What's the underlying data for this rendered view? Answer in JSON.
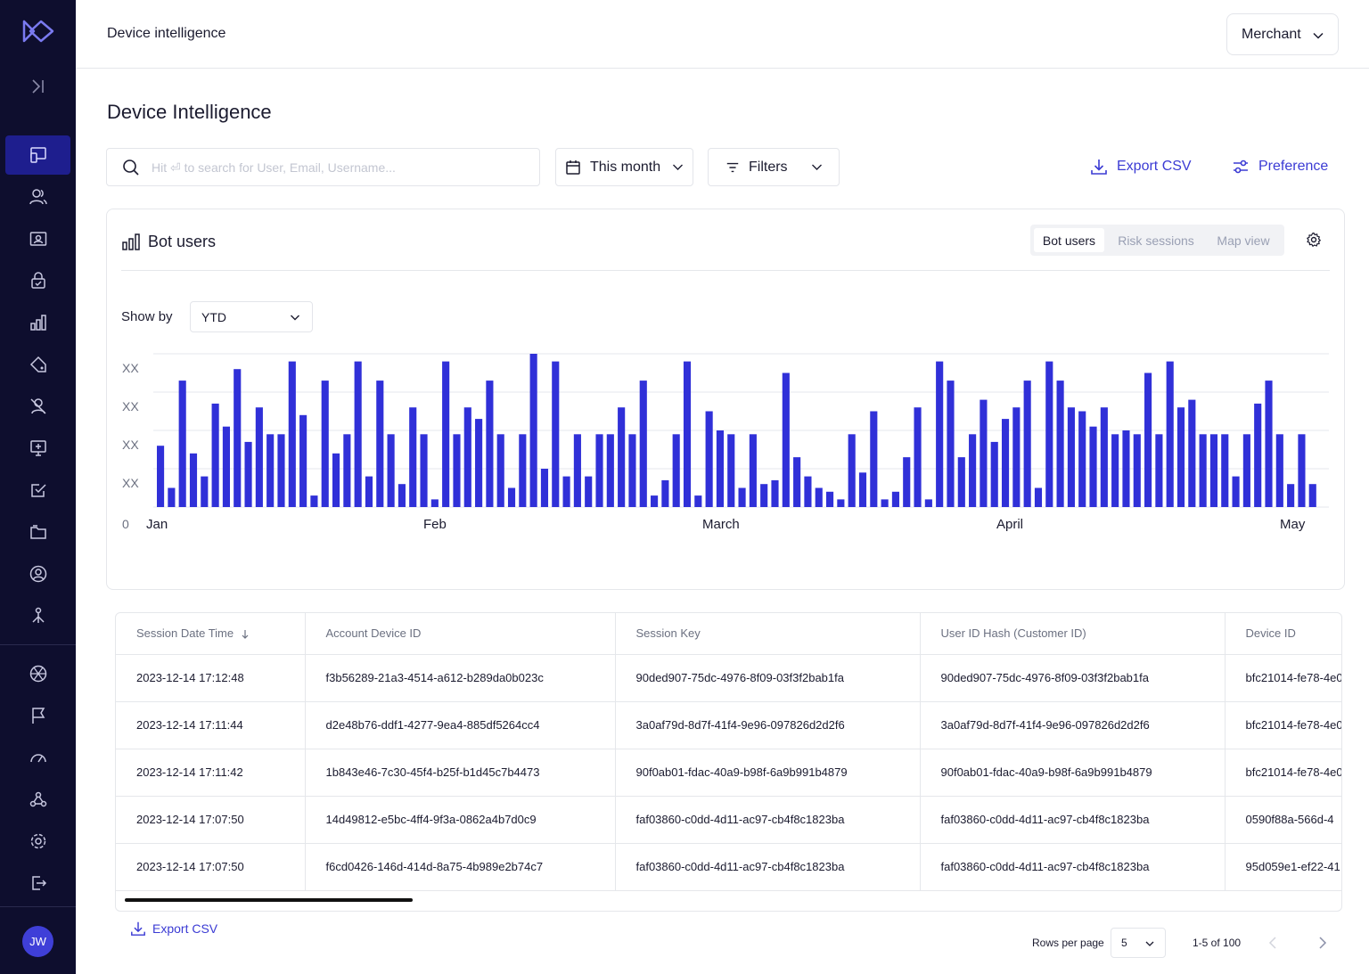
{
  "header": {
    "breadcrumb": "Device intelligence",
    "merchant_label": "Merchant"
  },
  "page": {
    "title": "Device Intelligence"
  },
  "controls": {
    "search_placeholder": "Hit ⏎ to search for User, Email, Username...",
    "date_range": "This month",
    "filters_label": "Filters",
    "export_label": "Export CSV",
    "preference_label": "Preference"
  },
  "chart_card": {
    "title": "Bot users",
    "tabs": [
      {
        "label": "Bot users",
        "active": true
      },
      {
        "label": "Risk sessions",
        "active": false
      },
      {
        "label": "Map view",
        "active": false
      }
    ],
    "show_by_label": "Show by",
    "show_by_value": "YTD"
  },
  "chart_data": {
    "type": "bar",
    "title": "",
    "xlabel": "",
    "ylabel": "",
    "ytick_labels": [
      "XX",
      "XX",
      "XX",
      "XX"
    ],
    "y_zero_label": "0",
    "x_month_labels": [
      "Jan",
      "Feb",
      "March",
      "April",
      "May"
    ],
    "ylim": [
      0,
      40
    ],
    "color": "#3030d8",
    "values": [
      16,
      5,
      33,
      14,
      8,
      27,
      21,
      36,
      17,
      26,
      19,
      19,
      38,
      24,
      3,
      33,
      14,
      19,
      38,
      8,
      33,
      19,
      6,
      26,
      19,
      2,
      38,
      19,
      26,
      23,
      33,
      19,
      5,
      19,
      40,
      10,
      38,
      8,
      19,
      8,
      19,
      19,
      26,
      19,
      33,
      3,
      7,
      19,
      38,
      3,
      25,
      20,
      19,
      5,
      19,
      6,
      7,
      35,
      13,
      8,
      5,
      4,
      2,
      19,
      9,
      25,
      2,
      4,
      13,
      26,
      2,
      38,
      33,
      13,
      19,
      28,
      17,
      23,
      26,
      33,
      5,
      38,
      33,
      26,
      25,
      21,
      26,
      19,
      20,
      19,
      35,
      19,
      38,
      26,
      28,
      19,
      19,
      19,
      8,
      19,
      27,
      33,
      19,
      6,
      19,
      6
    ]
  },
  "table": {
    "columns": [
      "Session Date Time",
      "Account Device ID",
      "Session Key",
      "User ID Hash (Customer ID)",
      "Device ID"
    ],
    "rows": [
      [
        "2023-12-14 17:12:48",
        "f3b56289-21a3-4514-a612-b289da0b023c",
        "90ded907-75dc-4976-8f09-03f3f2bab1fa",
        "90ded907-75dc-4976-8f09-03f3f2bab1fa",
        "bfc21014-fe78-4e0"
      ],
      [
        "2023-12-14 17:11:44",
        "d2e48b76-ddf1-4277-9ea4-885df5264cc4",
        "3a0af79d-8d7f-41f4-9e96-097826d2d2f6",
        "3a0af79d-8d7f-41f4-9e96-097826d2d2f6",
        "bfc21014-fe78-4e0"
      ],
      [
        "2023-12-14 17:11:42",
        "1b843e46-7c30-45f4-b25f-b1d45c7b4473",
        "90f0ab01-fdac-40a9-b98f-6a9b991b4879",
        "90f0ab01-fdac-40a9-b98f-6a9b991b4879",
        "bfc21014-fe78-4e0"
      ],
      [
        "2023-12-14 17:07:50",
        "14d49812-e5bc-4ff4-9f3a-0862a4b7d0c9",
        "faf03860-c0dd-4d11-ac97-cb4f8c1823ba",
        "faf03860-c0dd-4d11-ac97-cb4f8c1823ba",
        "0590f88a-566d-4"
      ],
      [
        "2023-12-14 17:07:50",
        "f6cd0426-146d-414d-8a75-4b989e2b74c7",
        "faf03860-c0dd-4d11-ac97-cb4f8c1823ba",
        "faf03860-c0dd-4d11-ac97-cb4f8c1823ba",
        "95d059e1-ef22-41"
      ]
    ]
  },
  "footer": {
    "export_label": "Export CSV",
    "rows_per_page_label": "Rows per page",
    "rows_per_page_value": "5",
    "range_label": "1-5 of 100"
  },
  "user": {
    "initials": "JW"
  },
  "colors": {
    "sidebar_bg": "#0e0e2e",
    "sidebar_active": "#1e1e8e",
    "accent": "#3b3bd4",
    "bar": "#3030d8",
    "avatar": "#3f3fd8"
  }
}
